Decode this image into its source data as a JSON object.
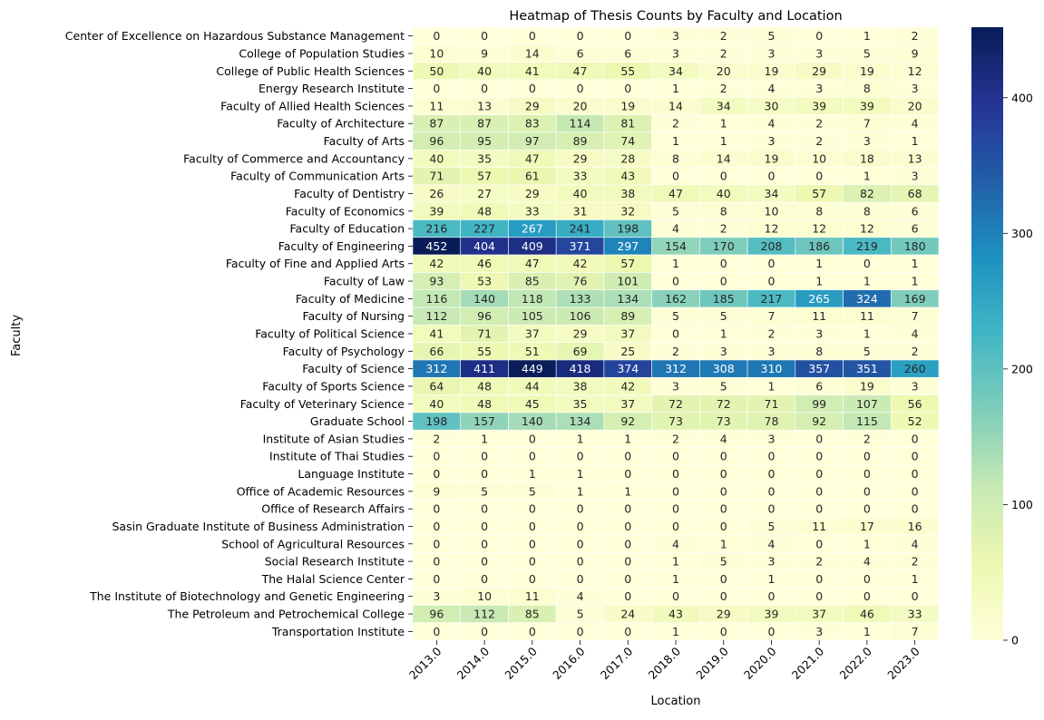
{
  "chart_data": {
    "type": "heatmap",
    "title": "Heatmap of Thesis Counts by Faculty and Location",
    "xlabel": "Location",
    "ylabel": "Faculty",
    "colormap": "YlGnBu",
    "color_range": [
      0,
      452
    ],
    "colorbar_ticks": [
      0,
      100,
      200,
      300,
      400
    ],
    "annotations": true,
    "x": [
      "2013.0",
      "2014.0",
      "2015.0",
      "2016.0",
      "2017.0",
      "2018.0",
      "2019.0",
      "2020.0",
      "2021.0",
      "2022.0",
      "2023.0"
    ],
    "y": [
      "Center of Excellence on Hazardous Substance Management",
      "College of Population Studies",
      "College of Public Health Sciences",
      "Energy Research Institute",
      "Faculty of Allied Health Sciences",
      "Faculty of Architecture",
      "Faculty of Arts",
      "Faculty of Commerce and Accountancy",
      "Faculty of Communication Arts",
      "Faculty of Dentistry",
      "Faculty of Economics",
      "Faculty of Education",
      "Faculty of Engineering",
      "Faculty of Fine and Applied Arts",
      "Faculty of Law",
      "Faculty of Medicine",
      "Faculty of Nursing",
      "Faculty of Political Science",
      "Faculty of Psychology",
      "Faculty of Science",
      "Faculty of Sports Science",
      "Faculty of Veterinary Science",
      "Graduate School",
      "Institute of Asian Studies",
      "Institute of Thai Studies",
      "Language Institute",
      "Office of Academic Resources",
      "Office of Research Affairs",
      "Sasin Graduate Institute of Business Administration",
      "School of Agricultural Resources",
      "Social Research Institute",
      "The Halal Science Center",
      "The Institute of Biotechnology and Genetic Engineering",
      "The Petroleum and Petrochemical College",
      "Transportation Institute"
    ],
    "values": [
      [
        0,
        0,
        0,
        0,
        0,
        3,
        2,
        5,
        0,
        1,
        2
      ],
      [
        10,
        9,
        14,
        6,
        6,
        3,
        2,
        3,
        3,
        5,
        9
      ],
      [
        50,
        40,
        41,
        47,
        55,
        34,
        20,
        19,
        29,
        19,
        12
      ],
      [
        0,
        0,
        0,
        0,
        0,
        1,
        2,
        4,
        3,
        8,
        3
      ],
      [
        11,
        13,
        29,
        20,
        19,
        14,
        34,
        30,
        39,
        39,
        20
      ],
      [
        87,
        87,
        83,
        114,
        81,
        2,
        1,
        4,
        2,
        7,
        4
      ],
      [
        96,
        95,
        97,
        89,
        74,
        1,
        1,
        3,
        2,
        3,
        1
      ],
      [
        40,
        35,
        47,
        29,
        28,
        8,
        14,
        19,
        10,
        18,
        13
      ],
      [
        71,
        57,
        61,
        33,
        43,
        0,
        0,
        0,
        0,
        1,
        3
      ],
      [
        26,
        27,
        29,
        40,
        38,
        47,
        40,
        34,
        57,
        82,
        68
      ],
      [
        39,
        48,
        33,
        31,
        32,
        5,
        8,
        10,
        8,
        8,
        6
      ],
      [
        216,
        227,
        267,
        241,
        198,
        4,
        2,
        12,
        12,
        12,
        6
      ],
      [
        452,
        404,
        409,
        371,
        297,
        154,
        170,
        208,
        186,
        219,
        180
      ],
      [
        42,
        46,
        47,
        42,
        57,
        1,
        0,
        0,
        1,
        0,
        1
      ],
      [
        93,
        53,
        85,
        76,
        101,
        0,
        0,
        0,
        1,
        1,
        1
      ],
      [
        116,
        140,
        118,
        133,
        134,
        162,
        185,
        217,
        265,
        324,
        169
      ],
      [
        112,
        96,
        105,
        106,
        89,
        5,
        5,
        7,
        11,
        11,
        7
      ],
      [
        41,
        71,
        37,
        29,
        37,
        0,
        1,
        2,
        3,
        1,
        4
      ],
      [
        66,
        55,
        51,
        69,
        25,
        2,
        3,
        3,
        8,
        5,
        2
      ],
      [
        312,
        411,
        449,
        418,
        374,
        312,
        308,
        310,
        357,
        351,
        260
      ],
      [
        64,
        48,
        44,
        38,
        42,
        3,
        5,
        1,
        6,
        19,
        3
      ],
      [
        40,
        48,
        45,
        35,
        37,
        72,
        72,
        71,
        99,
        107,
        56
      ],
      [
        198,
        157,
        140,
        134,
        92,
        73,
        73,
        78,
        92,
        115,
        52
      ],
      [
        2,
        1,
        0,
        1,
        1,
        2,
        4,
        3,
        0,
        2,
        0
      ],
      [
        0,
        0,
        0,
        0,
        0,
        0,
        0,
        0,
        0,
        0,
        0
      ],
      [
        0,
        0,
        1,
        1,
        0,
        0,
        0,
        0,
        0,
        0,
        0
      ],
      [
        9,
        5,
        5,
        1,
        1,
        0,
        0,
        0,
        0,
        0,
        0
      ],
      [
        0,
        0,
        0,
        0,
        0,
        0,
        0,
        0,
        0,
        0,
        0
      ],
      [
        0,
        0,
        0,
        0,
        0,
        0,
        0,
        5,
        11,
        17,
        16
      ],
      [
        0,
        0,
        0,
        0,
        0,
        4,
        1,
        4,
        0,
        1,
        4
      ],
      [
        0,
        0,
        0,
        0,
        0,
        1,
        5,
        3,
        2,
        4,
        2
      ],
      [
        0,
        0,
        0,
        0,
        0,
        1,
        0,
        1,
        0,
        0,
        1
      ],
      [
        3,
        10,
        11,
        4,
        0,
        0,
        0,
        0,
        0,
        0,
        0
      ],
      [
        96,
        112,
        85,
        5,
        24,
        43,
        29,
        39,
        37,
        46,
        33
      ],
      [
        0,
        0,
        0,
        0,
        0,
        1,
        0,
        0,
        3,
        1,
        7
      ]
    ]
  }
}
